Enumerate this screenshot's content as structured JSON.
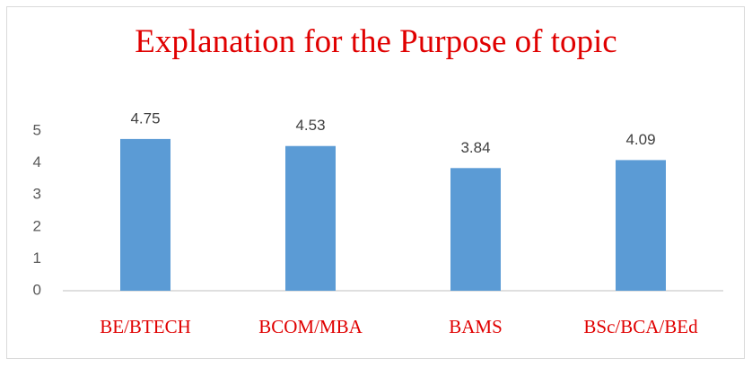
{
  "chart_data": {
    "type": "bar",
    "title": "Explanation for the Purpose of topic",
    "categories": [
      "BE/BTECH",
      "BCOM/MBA",
      "BAMS",
      "BSc/BCA/BEd"
    ],
    "values": [
      4.75,
      4.53,
      3.84,
      4.09
    ],
    "color": "#5b9bd5",
    "ylim": [
      0,
      5
    ],
    "yticks": [
      0,
      1,
      2,
      3,
      4,
      5
    ],
    "grid": false
  }
}
